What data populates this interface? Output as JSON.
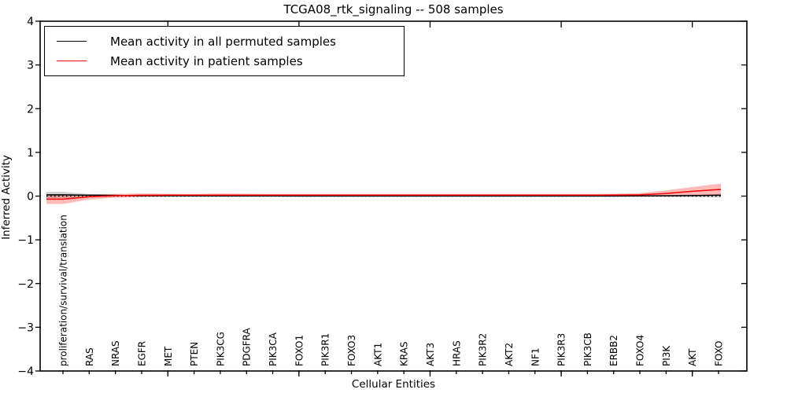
{
  "figure": {
    "title": "TCGA08_rtk_signaling -- 508 samples",
    "xlabel": "Cellular Entities",
    "ylabel": "Inferred Activity"
  },
  "legend": {
    "entries": [
      {
        "label": "Mean activity in all permuted samples",
        "color": "#000000"
      },
      {
        "label": "Mean activity in patient samples",
        "color": "#ff0000"
      }
    ]
  },
  "chart_data": {
    "type": "line",
    "title": "TCGA08_rtk_signaling -- 508 samples",
    "xlabel": "Cellular Entities",
    "ylabel": "Inferred Activity",
    "ylim": [
      -4,
      4
    ],
    "yticks": [
      4,
      3,
      2,
      1,
      0,
      -1,
      -2,
      -3,
      -4
    ],
    "x_major_tick_indices": [
      4,
      9,
      14,
      19,
      24
    ],
    "grid": false,
    "legend_position": "upper left",
    "zero_line": {
      "y": 0,
      "style": "dotted",
      "color": "#000000"
    },
    "categories": [
      "proliferation/survival/translation",
      "RAS",
      "NRAS",
      "EGFR",
      "MET",
      "PTEN",
      "PIK3CG",
      "PDGFRA",
      "PIK3CA",
      "FOXO1",
      "PIK3R1",
      "FOXO3",
      "AKT1",
      "KRAS",
      "AKT3",
      "HRAS",
      "PIK3R2",
      "AKT2",
      "NF1",
      "PIK3R3",
      "PIK3CB",
      "ERBB2",
      "FOXO4",
      "PI3K",
      "AKT",
      "FOXO"
    ],
    "series": [
      {
        "name": "Mean activity in all permuted samples",
        "color": "#000000",
        "band_color": "rgba(0,0,0,0.18)",
        "values": [
          0.03,
          0.02,
          0.015,
          0.01,
          0.008,
          0.006,
          0.005,
          0.004,
          0.004,
          0.003,
          0.003,
          0.003,
          0.003,
          0.003,
          0.003,
          0.003,
          0.003,
          0.003,
          0.003,
          0.003,
          0.003,
          0.003,
          0.004,
          0.006,
          0.012,
          0.02
        ],
        "band_upper": [
          0.1,
          0.05,
          0.035,
          0.025,
          0.02,
          0.016,
          0.014,
          0.013,
          0.012,
          0.012,
          0.012,
          0.012,
          0.012,
          0.012,
          0.012,
          0.012,
          0.012,
          0.012,
          0.012,
          0.012,
          0.012,
          0.013,
          0.015,
          0.022,
          0.035,
          0.05
        ],
        "band_lower": [
          -0.05,
          -0.02,
          -0.012,
          -0.008,
          -0.006,
          -0.005,
          -0.005,
          -0.005,
          -0.005,
          -0.005,
          -0.005,
          -0.005,
          -0.005,
          -0.005,
          -0.005,
          -0.005,
          -0.005,
          -0.005,
          -0.005,
          -0.005,
          -0.005,
          -0.006,
          -0.008,
          -0.012,
          -0.02,
          -0.03
        ]
      },
      {
        "name": "Mean activity in patient samples",
        "color": "#ff0000",
        "band_color": "rgba(255,0,0,0.27)",
        "values": [
          -0.07,
          -0.015,
          0.01,
          0.02,
          0.022,
          0.022,
          0.022,
          0.022,
          0.022,
          0.022,
          0.022,
          0.022,
          0.022,
          0.022,
          0.022,
          0.022,
          0.022,
          0.022,
          0.022,
          0.022,
          0.022,
          0.025,
          0.03,
          0.06,
          0.11,
          0.15
        ],
        "band_upper": [
          0.02,
          0.035,
          0.05,
          0.06,
          0.055,
          0.05,
          0.06,
          0.055,
          0.05,
          0.05,
          0.05,
          0.05,
          0.05,
          0.05,
          0.05,
          0.05,
          0.05,
          0.05,
          0.05,
          0.05,
          0.05,
          0.055,
          0.07,
          0.13,
          0.21,
          0.28
        ],
        "band_lower": [
          -0.18,
          -0.08,
          -0.035,
          -0.02,
          -0.012,
          -0.01,
          -0.01,
          -0.01,
          -0.01,
          -0.01,
          -0.01,
          -0.01,
          -0.01,
          -0.01,
          -0.01,
          -0.01,
          -0.01,
          -0.01,
          -0.01,
          -0.01,
          -0.01,
          -0.01,
          -0.005,
          0.0,
          0.01,
          0.02
        ]
      }
    ]
  }
}
